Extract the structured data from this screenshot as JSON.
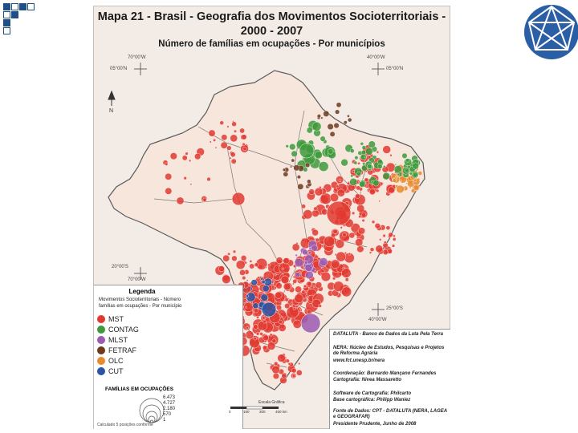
{
  "colors": {
    "mst": "#e23a30",
    "contag": "#3e9a3c",
    "mlst": "#9b5bb0",
    "fetraf": "#6e3a1e",
    "olc": "#e88a2e",
    "cut": "#2b52a3",
    "land": "#f3ece6",
    "outside": "#ffffff"
  },
  "map": {
    "title": "Mapa 21 - Brasil - Geografia dos Movimentos Socioterritoriais - 2000 - 2007",
    "subtitle": "Número de famílias em ocupações - Por municípios",
    "north_label": "N",
    "coords": [
      "70°00'W",
      "05°00'N",
      "40°00'W",
      "05°00'N",
      "20°00'S",
      "70°00'W",
      "25°00'S",
      "40°00'W"
    ]
  },
  "legend": {
    "title": "Legenda",
    "subtitle": "Movimentos Socioterritoriais - Número famílias em ocupações - Por município",
    "items": [
      {
        "label": "MST",
        "color": "#e23a30"
      },
      {
        "label": "CONTAG",
        "color": "#3e9a3c"
      },
      {
        "label": "MLST",
        "color": "#9b5bb0"
      },
      {
        "label": "FETRAF",
        "color": "#6e3a1e"
      },
      {
        "label": "OLC",
        "color": "#e88a2e"
      },
      {
        "label": "CUT",
        "color": "#2b52a3"
      }
    ],
    "families_title": "FAMÍLIAS EM OCUPAÇÕES",
    "families_sizes": [
      "6.473",
      "4.727",
      "2.180",
      "570",
      "1"
    ],
    "note": "Calculado 5 posições conforme"
  },
  "scale": {
    "label": "Escala Gráfica",
    "ticks": [
      "0",
      "150",
      "300",
      "450 km"
    ]
  },
  "credits": {
    "dataluta": "DATALUTA - Banco de Dados da Luta Pela Terra",
    "nera": "NERA: Núcleo de Estudos, Pesquisas e Projetos de Reforma Agrária",
    "url": "www.fct.unesp.br/nera",
    "coord": "Coordenação: Bernardo Mançano Fernandes",
    "carto": "Cartografia: Nivea Massaretto",
    "software": "Software de Cartografia: Philcarto",
    "base": "Base cartográfica: Philipp Waniez",
    "fonte": "Fonte de Dados: CPT - DATALUTA (NERA, LAGEA e GEOGRAFAR)",
    "place": "Presidente Prudente, Junho de 2008"
  }
}
